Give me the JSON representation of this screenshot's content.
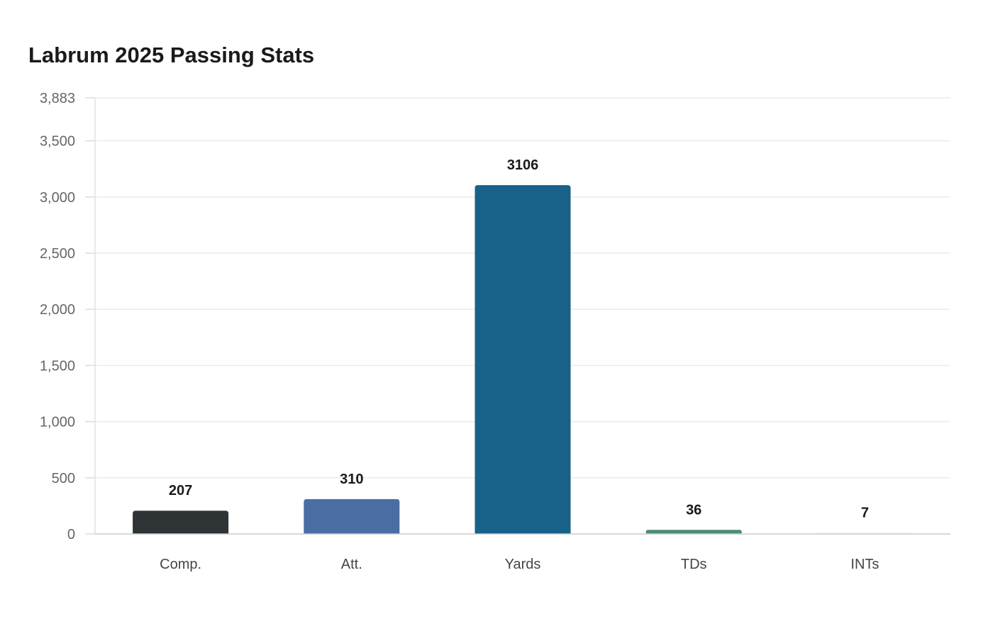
{
  "chart_data": {
    "type": "bar",
    "title": "Labrum 2025 Passing Stats",
    "xlabel": "",
    "ylabel": "",
    "categories": [
      "Comp.",
      "Att.",
      "Yards",
      "TDs",
      "INTs"
    ],
    "values": [
      207,
      310,
      3106,
      36,
      7
    ],
    "colors": [
      "#2e3436",
      "#4a6ea3",
      "#186187",
      "#4e8a7a",
      "#e8ebeb"
    ],
    "ylim": [
      0,
      3883
    ],
    "yticks": [
      0,
      500,
      1000,
      1500,
      2000,
      2500,
      3000,
      3500,
      3883
    ],
    "ytick_labels": [
      "0",
      "500",
      "1,000",
      "1,500",
      "2,000",
      "2,500",
      "3,000",
      "3,500",
      "3,883"
    ],
    "grid": true,
    "legend": "none"
  }
}
